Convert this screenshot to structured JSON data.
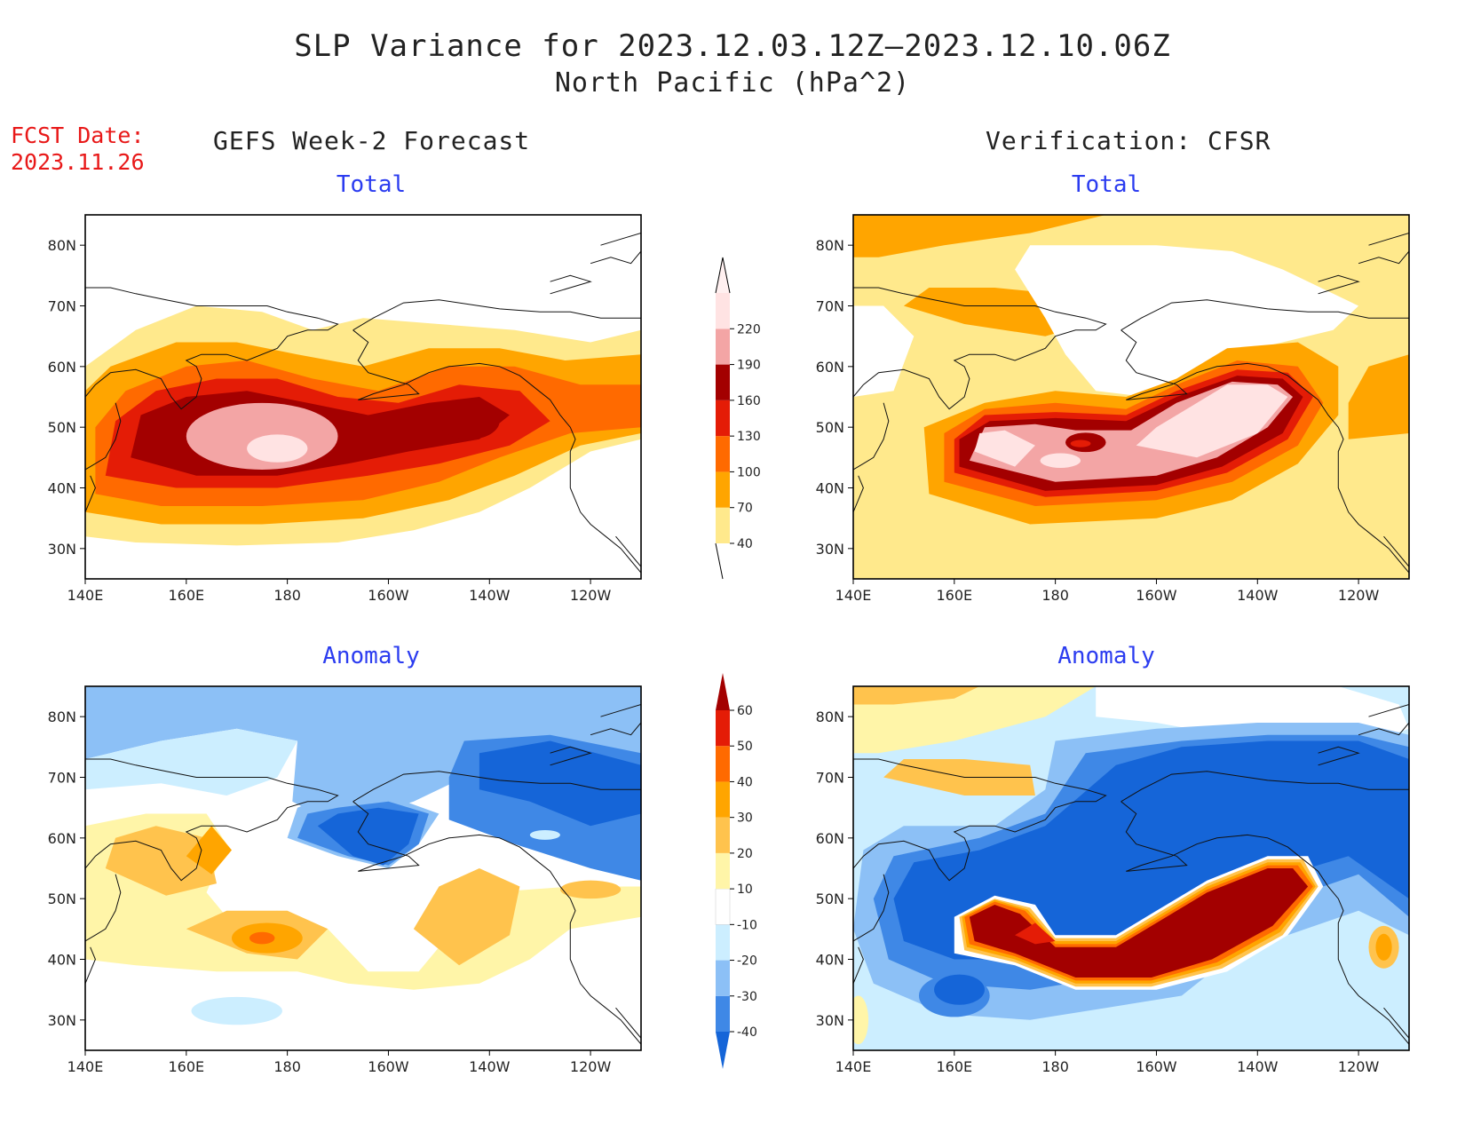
{
  "title": {
    "line1": "SLP Variance for 2023.12.03.12Z–2023.12.10.06Z",
    "line2": "North Pacific (hPa^2)"
  },
  "forecast_date": {
    "label": "FCST Date:",
    "value": "2023.11.26"
  },
  "columns": {
    "left": "GEFS Week-2 Forecast",
    "right": "Verification: CFSR"
  },
  "panels": [
    {
      "title": "Total",
      "row": 0,
      "col": 0
    },
    {
      "title": "Total",
      "row": 0,
      "col": 1
    },
    {
      "title": "Anomaly",
      "row": 1,
      "col": 0
    },
    {
      "title": "Anomaly",
      "row": 1,
      "col": 1
    }
  ],
  "axes": {
    "lat_labels": [
      "30N",
      "40N",
      "50N",
      "60N",
      "70N",
      "80N"
    ],
    "lat_values": [
      30,
      40,
      50,
      60,
      70,
      80
    ],
    "lon_labels": [
      "140E",
      "160E",
      "180",
      "160W",
      "140W",
      "120W"
    ],
    "lon_values": [
      140,
      160,
      180,
      200,
      220,
      240
    ],
    "lon_range": [
      140,
      250
    ],
    "lat_range": [
      25,
      85
    ]
  },
  "colorbars": {
    "total": {
      "levels": [
        "40",
        "70",
        "100",
        "130",
        "160",
        "190",
        "220"
      ],
      "colors": [
        "#ffe98c",
        "#ffa500",
        "#ff6a00",
        "#e41c06",
        "#a30000",
        "#f3a5a5",
        "#ffe3e3"
      ]
    },
    "anomaly": {
      "levels": [
        "-40",
        "-30",
        "-20",
        "-10",
        "10",
        "20",
        "30",
        "40",
        "50",
        "60"
      ],
      "colors": [
        "#1565d8",
        "#3f88e6",
        "#8cc0f6",
        "#cceeff",
        "#ffffff",
        "#fff5a8",
        "#ffc34d",
        "#ffa500",
        "#ff6a00",
        "#e41c06",
        "#a30000"
      ]
    }
  },
  "colors": {
    "title_text": "#222222",
    "fcst_text": "#e81818",
    "panel_title": "#2b3cf0"
  }
}
